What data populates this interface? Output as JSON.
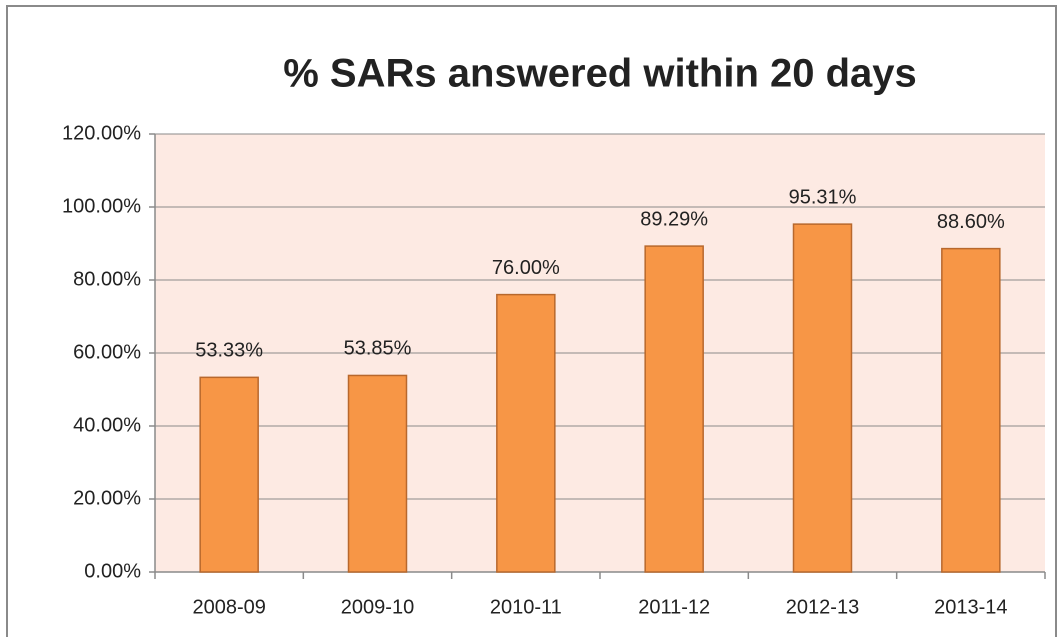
{
  "chart_data": {
    "type": "bar",
    "title": "% SARs answered within 20 days",
    "categories": [
      "2008-09",
      "2009-10",
      "2010-11",
      "2011-12",
      "2012-13",
      "2013-14"
    ],
    "values": [
      53.33,
      53.85,
      76.0,
      89.29,
      95.31,
      88.6
    ],
    "value_labels": [
      "53.33%",
      "53.85%",
      "76.00%",
      "89.29%",
      "95.31%",
      "88.60%"
    ],
    "color": "#f79646",
    "ylim": [
      0,
      120
    ],
    "yticks": [
      {
        "value": 0,
        "label": "0.00%"
      },
      {
        "value": 20,
        "label": "20.00%"
      },
      {
        "value": 40,
        "label": "40.00%"
      },
      {
        "value": 60,
        "label": "60.00%"
      },
      {
        "value": 80,
        "label": "80.00%"
      },
      {
        "value": 100,
        "label": "100.00%"
      },
      {
        "value": 120,
        "label": "120.00%"
      }
    ],
    "grid": true
  }
}
